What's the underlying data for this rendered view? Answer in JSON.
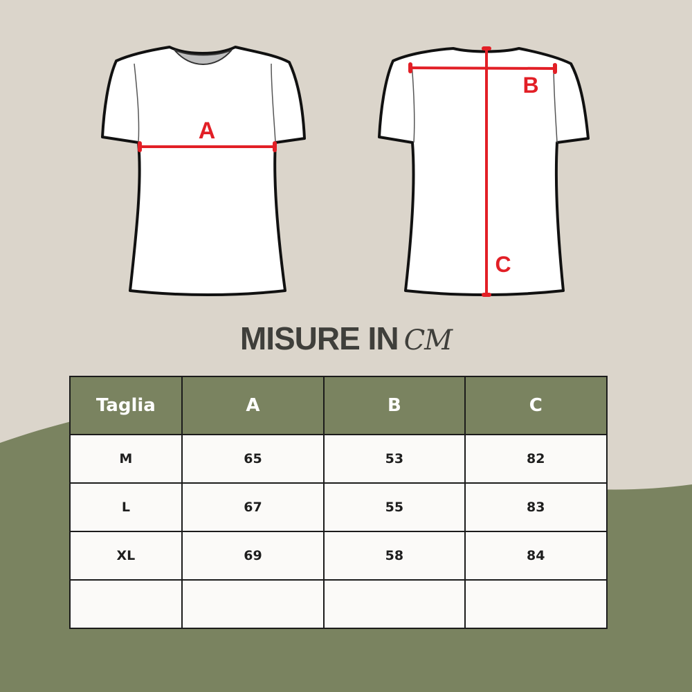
{
  "colors": {
    "background": "#dbd5cb",
    "accent_green": "#7a8360",
    "measure_red": "#e21f26",
    "text_dark": "#3f3f3b"
  },
  "diagram": {
    "front_label": "A",
    "back_label_width": "B",
    "back_label_length": "C"
  },
  "title": {
    "main": "MISURE IN",
    "unit": "CM"
  },
  "table": {
    "headers": [
      "Taglia",
      "A",
      "B",
      "C"
    ],
    "rows": [
      [
        "M",
        "65",
        "53",
        "82"
      ],
      [
        "L",
        "67",
        "55",
        "83"
      ],
      [
        "XL",
        "69",
        "58",
        "84"
      ],
      [
        "",
        "",
        "",
        ""
      ]
    ]
  }
}
